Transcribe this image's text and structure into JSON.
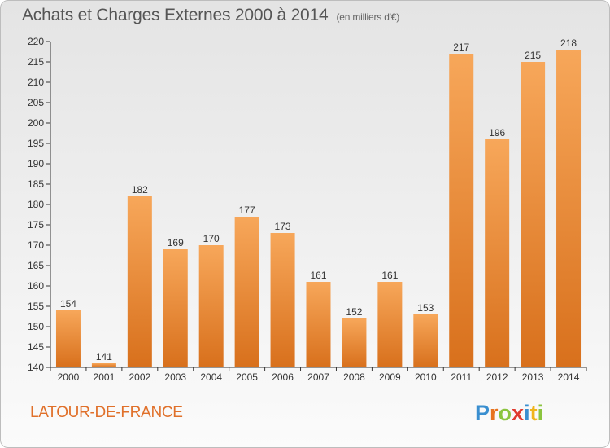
{
  "header": {
    "title": "Achats et Charges Externes 2000 à 2014",
    "unit": "(en milliers d'€)"
  },
  "footer": {
    "commune": "LATOUR-DE-FRANCE",
    "brand": "Proxiti"
  },
  "colors": {
    "bar_light": "#f7a75a",
    "bar_dark": "#d8701c",
    "axis": "#333333",
    "commune": "#e0702a"
  },
  "chart_data": {
    "type": "bar",
    "title": "Achats et Charges Externes 2000 à 2014",
    "subtitle": "(en milliers d'€)",
    "categories": [
      "2000",
      "2001",
      "2002",
      "2003",
      "2004",
      "2005",
      "2006",
      "2007",
      "2008",
      "2009",
      "2010",
      "2011",
      "2012",
      "2013",
      "2014"
    ],
    "values": [
      154,
      141,
      182,
      169,
      170,
      177,
      173,
      161,
      152,
      161,
      153,
      217,
      196,
      215,
      218
    ],
    "ylim": [
      140,
      220
    ],
    "yticks": [
      140,
      145,
      150,
      155,
      160,
      165,
      170,
      175,
      180,
      185,
      190,
      195,
      200,
      205,
      210,
      215,
      220
    ],
    "grid": false,
    "legend": "none"
  }
}
